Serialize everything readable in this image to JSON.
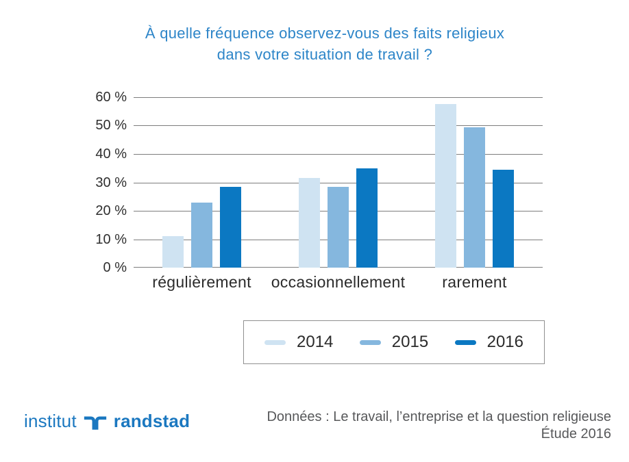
{
  "title": {
    "line1": "À quelle fréquence observez-vous des faits religieux",
    "line2": "dans votre situation de travail ?"
  },
  "chart_data": {
    "type": "bar",
    "title": "À quelle fréquence observez-vous des faits religieux dans votre situation de travail ?",
    "categories": [
      "régulièrement",
      "occasionnellement",
      "rarement"
    ],
    "series": [
      {
        "name": "2014",
        "color": "#cfe3f2",
        "values": [
          11,
          31.5,
          57.5
        ]
      },
      {
        "name": "2015",
        "color": "#85b7de",
        "values": [
          23,
          28.5,
          49.5
        ]
      },
      {
        "name": "2016",
        "color": "#0b78c2",
        "values": [
          28.5,
          35,
          34.5
        ]
      }
    ],
    "xlabel": "",
    "ylabel": "",
    "ylim": [
      0,
      60
    ],
    "ytick_step": 10,
    "ytick_suffix": " %",
    "grid": true,
    "legend_position": "bottom"
  },
  "footer": {
    "logo_word1": "institut",
    "logo_word2": "randstad",
    "source_line1": "Données : Le travail, l’entreprise et la question religieuse",
    "source_line2": "Étude 2016"
  },
  "colors": {
    "title_text": "#2d85c8",
    "gridline": "#7d7d7d",
    "axis_text": "#2b2b2b",
    "legend_border": "#8f8f8f",
    "logo_blue": "#1b78c0",
    "source_text": "#57585a"
  }
}
